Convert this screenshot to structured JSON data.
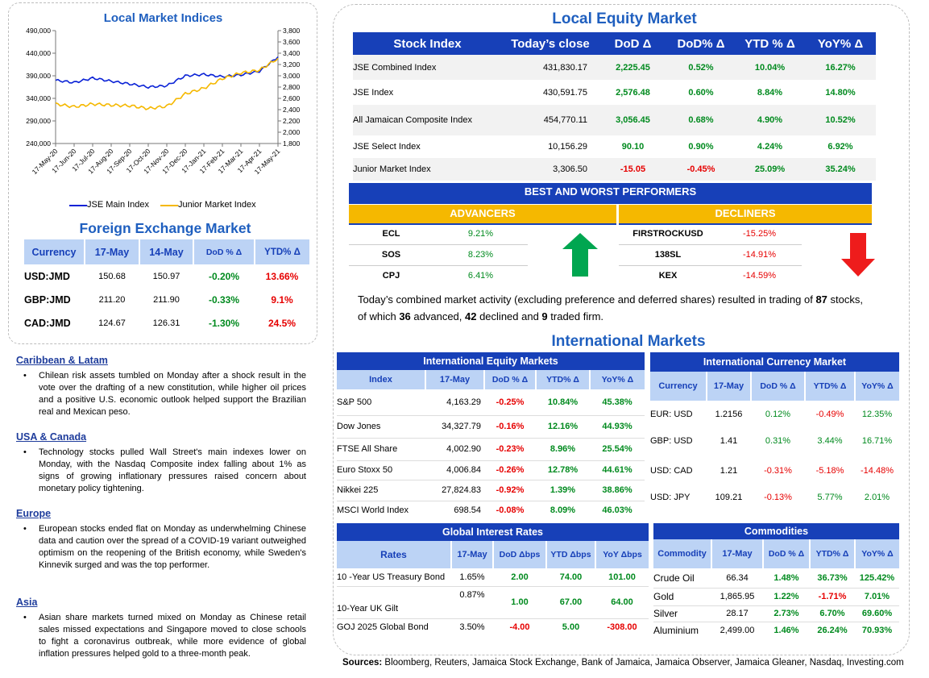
{
  "chart": {
    "title": "Local Market Indices",
    "legend": [
      {
        "label": "JSE Main Index",
        "color": "#0a22d6"
      },
      {
        "label": "Junior Market Index",
        "color": "#f5b800"
      }
    ]
  },
  "chart_data": {
    "type": "line",
    "title": "Local Market Indices",
    "x": [
      "17-May-20",
      "17-Jun-20",
      "17-Jul-20",
      "17-Aug-20",
      "17-Sep-20",
      "17-Oct-20",
      "17-Nov-20",
      "17-Dec-20",
      "17-Jan-21",
      "17-Feb-21",
      "17-Mar-21",
      "17-Apr-21",
      "17-May-21"
    ],
    "y_left": {
      "ticks": [
        "240,000",
        "290,000",
        "340,000",
        "390,000",
        "440,000",
        "490,000"
      ],
      "ylim": [
        240000,
        490000
      ]
    },
    "y_right": {
      "ticks": [
        "1,800",
        "2,000",
        "2,200",
        "2,400",
        "2,600",
        "2,800",
        "3,000",
        "3,200",
        "3,400",
        "3,600",
        "3,800"
      ],
      "ylim": [
        1800,
        3800
      ]
    },
    "series": [
      {
        "name": "JSE Main Index",
        "axis": "left",
        "color": "#0a22d6",
        "values": [
          380000,
          375000,
          385000,
          378000,
          372000,
          365000,
          368000,
          390000,
          393000,
          388000,
          392000,
          400000,
          432000
        ]
      },
      {
        "name": "Junior Market Index",
        "axis": "right",
        "color": "#f5b800",
        "values": [
          2500,
          2450,
          2500,
          2480,
          2470,
          2420,
          2460,
          2680,
          2780,
          2950,
          3050,
          3100,
          3310
        ]
      }
    ],
    "grid": false,
    "legend_position": "bottom"
  },
  "fx": {
    "title": "Foreign Exchange Market",
    "headers": [
      "Currency",
      "17-May",
      "14-May",
      "DoD % Δ",
      "YTD% Δ"
    ],
    "rows": [
      {
        "c": "USD:JMD",
        "a": "150.68",
        "b": "150.97",
        "d": "-0.20%",
        "y": "13.66%",
        "dc": "pos",
        "yc": "neg"
      },
      {
        "c": "GBP:JMD",
        "a": "211.20",
        "b": "211.90",
        "d": "-0.33%",
        "y": "9.1%",
        "dc": "pos",
        "yc": "neg"
      },
      {
        "c": "CAD:JMD",
        "a": "124.67",
        "b": "126.31",
        "d": "-1.30%",
        "y": "24.5%",
        "dc": "pos",
        "yc": "neg"
      }
    ]
  },
  "news": [
    {
      "head": "Caribbean & Latam",
      "text": "Chilean risk assets tumbled on Monday after a shock result in the vote over the drafting of a new constitution, while higher oil prices and a positive U.S. economic outlook helped support the Brazilian real and Mexican peso."
    },
    {
      "head": "USA & Canada",
      "text": "Technology stocks pulled Wall Street's main indexes lower on Monday, with the Nasdaq Composite index falling about 1% as signs of growing inflationary pressures raised concern about monetary policy tightening."
    },
    {
      "head": "Europe",
      "text": "European stocks ended flat on Monday as underwhelming Chinese data and caution over the spread of a COVID-19 variant outweighed optimism on the reopening of the British economy, while Sweden's Kinnevik surged and was the top performer."
    },
    {
      "head": "Asia",
      "text": "Asian share markets turned mixed on Monday as Chinese retail sales missed expectations and Singapore moved to close schools to fight a coronavirus outbreak, while more evidence of global inflation pressures helped gold to a three-month peak."
    }
  ],
  "equity": {
    "title": "Local Equity Market",
    "headers": [
      "Stock Index",
      "Today’s close",
      "DoD  Δ",
      "DoD% Δ",
      "YTD % Δ",
      "YoY% Δ"
    ],
    "rows": [
      {
        "n": "JSE Combined Index",
        "c": "431,830.17",
        "d": "2,225.45",
        "dp": "0.52%",
        "y": "10.04%",
        "yy": "16.27%",
        "cls": "pos"
      },
      {
        "n": "JSE Index",
        "c": "430,591.75",
        "d": "2,576.48",
        "dp": "0.60%",
        "y": "8.84%",
        "yy": "14.80%",
        "cls": "pos"
      },
      {
        "n": "All Jamaican Composite Index",
        "c": "454,770.11",
        "d": "3,056.45",
        "dp": "0.68%",
        "y": "4.90%",
        "yy": "10.52%",
        "cls": "pos"
      },
      {
        "n": "JSE Select Index",
        "c": "10,156.29",
        "d": "90.10",
        "dp": "0.90%",
        "y": "4.24%",
        "yy": "6.92%",
        "cls": "pos"
      },
      {
        "n": "Junior Market Index",
        "c": "3,306.50",
        "d": "-15.05",
        "dp": "-0.45%",
        "y": "25.09%",
        "yy": "35.24%",
        "cls": "neg"
      }
    ]
  },
  "performers": {
    "title": "BEST AND WORST PERFORMERS",
    "adv_label": "ADVANCERS",
    "dec_label": "DECLINERS",
    "advancers": [
      {
        "s": "ECL",
        "v": "9.21%"
      },
      {
        "s": "SOS",
        "v": "8.23%"
      },
      {
        "s": "CPJ",
        "v": "6.41%"
      }
    ],
    "decliners": [
      {
        "s": "FIRSTROCKUSD",
        "v": "-15.25%"
      },
      {
        "s": "138SL",
        "v": "-14.91%"
      },
      {
        "s": "KEX",
        "v": "-14.59%"
      }
    ]
  },
  "summary": {
    "p1": "Today’s combined market activity (excluding preference and deferred shares) resulted in trading of ",
    "total": "87",
    "p2": " stocks, of which ",
    "adv": "36",
    "p3": " advanced, ",
    "dec": "42",
    "p4": " declined and ",
    "firm": "9",
    "p5": " traded firm."
  },
  "intl": {
    "title": "International Markets",
    "equity": {
      "title": "International Equity Markets",
      "headers": [
        "Index",
        "17-May",
        "DoD % Δ",
        "YTD% Δ",
        "YoY% Δ"
      ],
      "rows": [
        {
          "n": "S&P 500",
          "v": "4,163.29",
          "d": "-0.25%",
          "y": "10.84%",
          "yy": "45.38%"
        },
        {
          "n": "Dow Jones",
          "v": "34,327.79",
          "d": "-0.16%",
          "y": "12.16%",
          "yy": "44.93%"
        },
        {
          "n": "FTSE All Share",
          "v": "4,002.90",
          "d": "-0.23%",
          "y": "8.96%",
          "yy": "25.54%"
        },
        {
          "n": "Euro Stoxx 50",
          "v": "4,006.84",
          "d": "-0.26%",
          "y": "12.78%",
          "yy": "44.61%"
        },
        {
          "n": "Nikkei 225",
          "v": "27,824.83",
          "d": "-0.92%",
          "y": "1.39%",
          "yy": "38.86%"
        },
        {
          "n": "MSCI World Index",
          "v": "698.54",
          "d": "-0.08%",
          "y": "8.09%",
          "yy": "46.03%"
        }
      ]
    },
    "currency": {
      "title": "International Currency Market",
      "headers": [
        "Currency",
        "17-May",
        "DoD % Δ",
        "YTD% Δ",
        "YoY% Δ"
      ],
      "rows": [
        {
          "n": "EUR: USD",
          "v": "1.2156",
          "d": "0.12%",
          "dc": "pos",
          "y": "-0.49%",
          "yc": "neg",
          "yy": "12.35%",
          "yyc": "pos"
        },
        {
          "n": "GBP: USD",
          "v": "1.41",
          "d": "0.31%",
          "dc": "pos",
          "y": "3.44%",
          "yc": "pos",
          "yy": "16.71%",
          "yyc": "pos"
        },
        {
          "n": "USD: CAD",
          "v": "1.21",
          "d": "-0.31%",
          "dc": "neg",
          "y": "-5.18%",
          "yc": "neg",
          "yy": "-14.48%",
          "yyc": "neg"
        },
        {
          "n": "USD: JPY",
          "v": "109.21",
          "d": "-0.13%",
          "dc": "neg",
          "y": "5.77%",
          "yc": "pos",
          "yy": "2.01%",
          "yyc": "pos"
        }
      ]
    },
    "rates": {
      "title": "Global Interest Rates",
      "headers": [
        "Rates",
        "17-May",
        "DoD Δbps",
        "YTD Δbps",
        "YoY Δbps"
      ],
      "rows": [
        {
          "n": "10 -Year US Treasury Bond",
          "v": "1.65%",
          "d": "2.00",
          "dc": "pos",
          "y": "74.00",
          "yc": "pos",
          "yy": "101.00",
          "yyc": "pos"
        },
        {
          "n": "10-Year UK Gilt",
          "v": "0.87%",
          "d": "1.00",
          "dc": "pos",
          "y": "67.00",
          "yc": "pos",
          "yy": "64.00",
          "yyc": "pos"
        },
        {
          "n": "GOJ 2025 Global Bond",
          "v": "3.50%",
          "d": "-4.00",
          "dc": "neg",
          "y": "5.00",
          "yc": "pos",
          "yy": "-308.00",
          "yyc": "neg"
        }
      ]
    },
    "commodities": {
      "title": "Commodities",
      "headers": [
        "Commodity",
        "17-May",
        "DoD % Δ",
        "YTD% Δ",
        "YoY% Δ"
      ],
      "rows": [
        {
          "n": "Crude Oil",
          "v": "66.34",
          "d": "1.48%",
          "dc": "pos",
          "y": "36.73%",
          "yc": "pos",
          "yy": "125.42%",
          "yyc": "pos"
        },
        {
          "n": "Gold",
          "v": "1,865.95",
          "d": "1.22%",
          "dc": "pos",
          "y": "-1.71%",
          "yc": "neg",
          "yy": "7.01%",
          "yyc": "pos"
        },
        {
          "n": "Silver",
          "v": "28.17",
          "d": "2.73%",
          "dc": "pos",
          "y": "6.70%",
          "yc": "pos",
          "yy": "69.60%",
          "yyc": "pos"
        },
        {
          "n": "Aluminium",
          "v": "2,499.00",
          "d": "1.46%",
          "dc": "pos",
          "y": "26.24%",
          "yc": "pos",
          "yy": "70.93%",
          "yyc": "pos"
        }
      ]
    }
  },
  "sources": {
    "label": "Sources:",
    "text": " Bloomberg, Reuters, Jamaica Stock Exchange, Bank of Jamaica, Jamaica Observer, Jamaica Gleaner, Nasdaq, Investing.com"
  }
}
